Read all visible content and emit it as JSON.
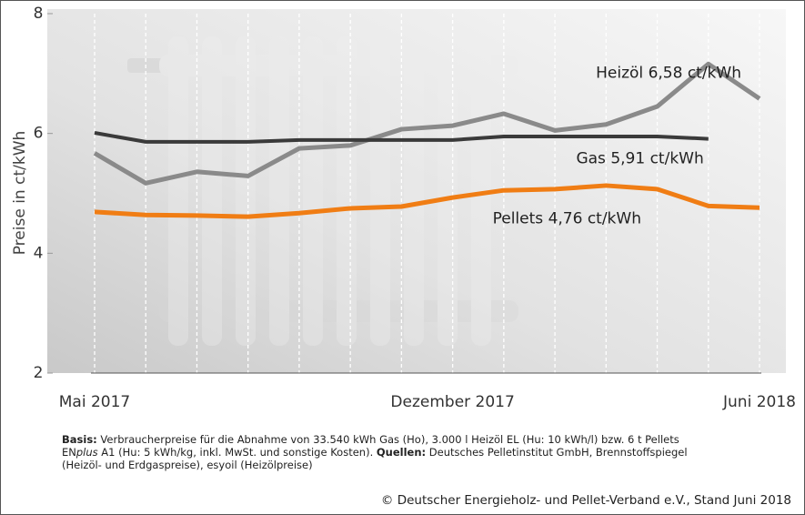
{
  "chart_data": {
    "type": "line",
    "y_label": "Preise in ct/kWh",
    "categories": [
      "Mai 2017",
      null,
      null,
      null,
      null,
      null,
      null,
      "Dezember 2017",
      null,
      null,
      null,
      null,
      null,
      "Juni 2018"
    ],
    "series": [
      {
        "name": "Heizöl",
        "color": "#8a8a8a",
        "values": [
          5.67,
          5.17,
          5.36,
          5.29,
          5.75,
          5.8,
          6.07,
          6.13,
          6.33,
          6.05,
          6.15,
          6.45,
          7.16,
          6.58
        ],
        "value_labels": [
          null,
          null,
          null,
          null,
          null,
          null,
          null,
          null,
          null,
          null,
          null,
          null,
          null,
          "6,58 ct/kWh"
        ]
      },
      {
        "name": "Gas",
        "color": "#3a3a3a",
        "values": [
          6.01,
          5.86,
          5.86,
          5.86,
          5.89,
          5.89,
          5.89,
          5.89,
          5.95,
          5.95,
          5.95,
          5.95,
          5.91,
          null
        ],
        "value_labels": [
          null,
          null,
          null,
          null,
          null,
          null,
          null,
          null,
          null,
          null,
          null,
          null,
          "5,91 ct/kWh",
          null
        ]
      },
      {
        "name": "Pellets",
        "color": "#f07d14",
        "values": [
          4.69,
          4.64,
          4.63,
          4.61,
          4.67,
          4.75,
          4.78,
          4.93,
          5.05,
          5.07,
          5.13,
          5.07,
          4.79,
          4.76
        ],
        "value_labels": [
          null,
          null,
          null,
          null,
          null,
          null,
          null,
          null,
          null,
          null,
          null,
          null,
          null,
          "4,76 ct/kWh"
        ]
      }
    ],
    "ylim": [
      2,
      8
    ],
    "yticks": [
      2,
      4,
      6,
      8
    ],
    "notes": [
      {
        "bold": "Basis:",
        "text": " Verbraucherpreise für die Abnahme von 33.540 kWh Gas (Ho), 3.000 l Heizöl EL (Hu: 10 kWh/l) bzw. 6 t Pellets"
      },
      {
        "pre": "EN",
        "italic": "plus",
        "text": " A1 (Hu: 5 kWh/kg, inkl. MwSt. und sonstige Kosten). ",
        "bold": "Quellen:",
        "after": " Deutsches Pelletinstitut GmbH, Brennstoffspiegel"
      },
      {
        "text": "(Heizöl- und Erdgaspreise), esyoil (Heizölpreise)"
      }
    ],
    "credit": "© Deutscher Energieholz- und Pellet-Verband e.V., Stand Juni 2018"
  }
}
